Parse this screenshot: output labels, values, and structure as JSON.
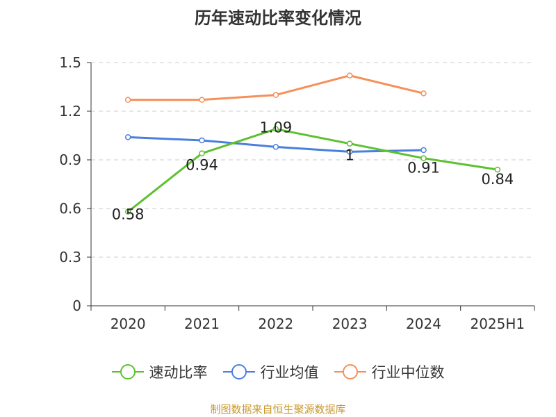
{
  "chart_data": {
    "type": "line",
    "title": "历年速动比率变化情况",
    "categories": [
      "2020",
      "2021",
      "2022",
      "2023",
      "2024",
      "2025H1"
    ],
    "ylim": [
      0,
      1.5
    ],
    "yticks": [
      "0",
      "0.3",
      "0.6",
      "0.9",
      "1.2",
      "1.5"
    ],
    "ytick_values": [
      0,
      0.3,
      0.6,
      0.9,
      1.2,
      1.5
    ],
    "grid": true,
    "legend_position": "bottom",
    "series": [
      {
        "name": "速动比率",
        "color": "#5cc12f",
        "values": [
          0.58,
          0.94,
          1.09,
          1.0,
          0.91,
          0.84
        ],
        "labels": [
          "0.58",
          "0.94",
          "1.09",
          "1",
          "0.91",
          "0.84"
        ]
      },
      {
        "name": "行业均值",
        "color": "#4a7fdc",
        "values": [
          1.04,
          1.02,
          0.98,
          0.95,
          0.96,
          null
        ]
      },
      {
        "name": "行业中位数",
        "color": "#f59058",
        "values": [
          1.27,
          1.27,
          1.3,
          1.42,
          1.31,
          null
        ]
      }
    ]
  },
  "source_text": "制图数据来自恒生聚源数据库"
}
